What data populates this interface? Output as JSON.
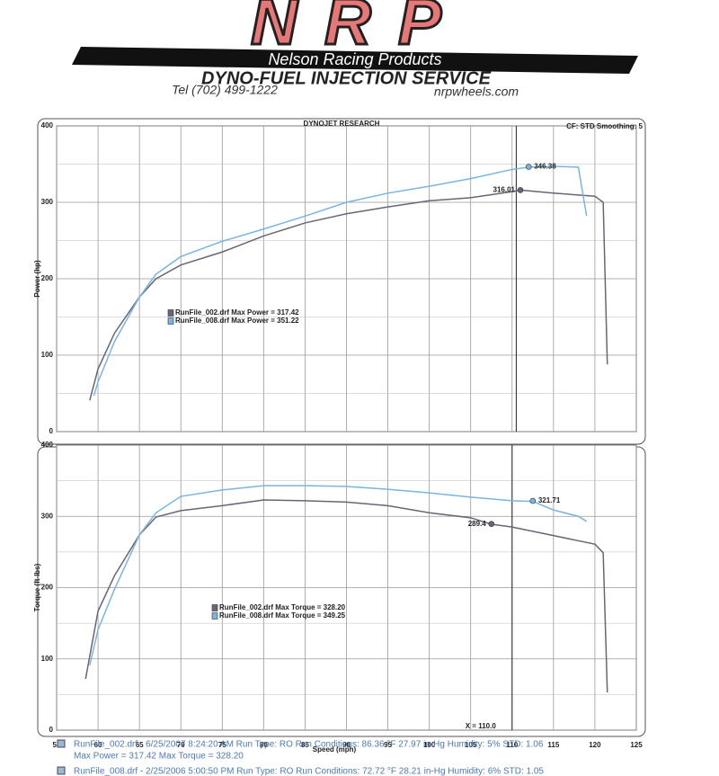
{
  "header": {
    "logo": "NRP",
    "company": "Nelson Racing Products",
    "service": "DYNO-FUEL INJECTION SERVICE",
    "phone": "Tel (702) 499-1222",
    "website": "nrpwheels.com"
  },
  "chart_data": [
    {
      "type": "line",
      "title": "DYNOJET RESEARCH",
      "subtitle": "CF: STD  Smoothing: 5",
      "ylabel": "Power (hp)",
      "xlim": [
        55,
        125
      ],
      "xticks": [
        55,
        60,
        65,
        70,
        75,
        80,
        85,
        90,
        95,
        100,
        105,
        110,
        115,
        120,
        125
      ],
      "ylim": [
        0,
        400
      ],
      "yticks": [
        0,
        100,
        200,
        300,
        400
      ],
      "grid": true,
      "series": [
        {
          "name": "RunFile_002.drf Max Power = 317.42",
          "color": "#6a6478",
          "x": [
            59,
            60,
            62,
            65,
            67,
            70,
            75,
            80,
            85,
            90,
            95,
            100,
            105,
            110,
            111,
            115,
            120,
            121,
            121.5
          ],
          "values": [
            41,
            82,
            129,
            176,
            200,
            218,
            235,
            256,
            273,
            285,
            294,
            302,
            306,
            314,
            316,
            312,
            308,
            300,
            88
          ]
        },
        {
          "name": "RunFile_008.drf Max Power = 351.22",
          "color": "#7ab4e0",
          "x": [
            59.5,
            60,
            62,
            65,
            67,
            70,
            75,
            80,
            85,
            90,
            95,
            100,
            105,
            110,
            112,
            115,
            118,
            119
          ],
          "values": [
            47,
            65,
            118,
            176,
            206,
            229,
            249,
            265,
            282,
            300,
            312,
            321,
            331,
            343,
            346,
            347,
            346,
            282
          ]
        }
      ],
      "annotations": [
        {
          "x": 112,
          "y": 346.38
        },
        {
          "x": 111,
          "y": 316.01
        }
      ],
      "cursor": {
        "value": 110.5,
        "label": ""
      }
    },
    {
      "type": "line",
      "ylabel": "Torque (ft-lbs)",
      "xlabel": "Speed (mph)",
      "xlim": [
        55,
        125
      ],
      "xticks": [
        55,
        60,
        65,
        70,
        75,
        80,
        85,
        90,
        95,
        100,
        105,
        110,
        115,
        120,
        125
      ],
      "ylim": [
        0,
        400
      ],
      "yticks": [
        0,
        100,
        200,
        300,
        400
      ],
      "grid": true,
      "series": [
        {
          "name": "RunFile_002.drf Max Torque = 328.20",
          "color": "#6a6478",
          "x": [
            58.5,
            60,
            62,
            65,
            67,
            70,
            75,
            80,
            85,
            90,
            95,
            100,
            105,
            107.5,
            110,
            115,
            120,
            121,
            121.5
          ],
          "values": [
            72,
            167,
            217,
            274,
            299,
            308,
            315,
            323,
            322,
            320,
            315,
            305,
            298,
            289,
            285,
            273,
            261,
            249,
            53
          ]
        },
        {
          "name": "RunFile_008.drf Max Torque = 349.25",
          "color": "#7ab4e0",
          "x": [
            59,
            60,
            62,
            65,
            67,
            70,
            75,
            80,
            85,
            90,
            95,
            100,
            105,
            110,
            112.5,
            115,
            118,
            119
          ],
          "values": [
            91,
            141,
            198,
            274,
            305,
            328,
            337,
            343,
            343,
            342,
            338,
            333,
            327,
            322,
            321,
            309,
            300,
            293
          ]
        }
      ],
      "annotations": [
        {
          "x": 112.5,
          "y": 321.71
        },
        {
          "x": 107.5,
          "y": 289.4
        }
      ],
      "cursor": {
        "value": 110.0,
        "label": "X = 110.0"
      }
    }
  ],
  "footer": [
    "RunFile_002.drf - 6/25/2007 8:24:20 AM  Run Type: RO  Run Conditions: 86.36 °F 27.97 in-Hg  Humidity: 5%  STD: 1.06",
    "Max Power = 317.42  Max Torque = 328.20",
    "RunFile_008.drf - 2/25/2006 5:00:50 PM  Run Type: RO  Run Conditions: 72.72 °F 28.21 in-Hg  Humidity: 6%  STD: 1.05"
  ]
}
